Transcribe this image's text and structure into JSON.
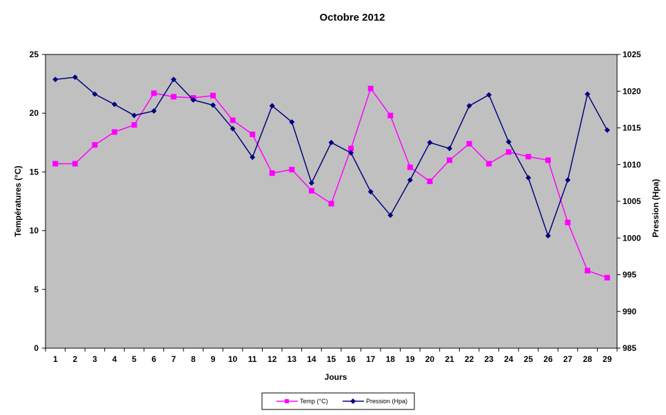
{
  "chart_data": {
    "type": "line",
    "title": "Octobre 2012",
    "xlabel": "Jours",
    "ylabel_left": "Températures (°C)",
    "ylabel_right": "Pression (Hpa)",
    "categories": [
      "1",
      "2",
      "3",
      "4",
      "5",
      "6",
      "7",
      "8",
      "9",
      "10",
      "11",
      "12",
      "13",
      "14",
      "15",
      "16",
      "17",
      "18",
      "19",
      "20",
      "21",
      "22",
      "23",
      "24",
      "25",
      "26",
      "27",
      "28",
      "29"
    ],
    "y_left_ticks": [
      "0",
      "5",
      "10",
      "15",
      "20",
      "25"
    ],
    "y_right_ticks": [
      "985",
      "990",
      "995",
      "1000",
      "1005",
      "1010",
      "1015",
      "1020",
      "1025"
    ],
    "ylim_left": [
      0,
      25
    ],
    "ylim_right": [
      985,
      1025
    ],
    "plot_background": "#C0C0C0",
    "grid": false,
    "legend_position": "bottom",
    "series": [
      {
        "name": "Temp (°C)",
        "axis": "left",
        "color": "#FF00FF",
        "marker": "square",
        "values": [
          15.7,
          15.7,
          17.3,
          18.4,
          19.0,
          21.7,
          21.4,
          21.3,
          21.5,
          19.4,
          18.2,
          14.9,
          15.2,
          13.4,
          12.3,
          17.0,
          22.1,
          19.8,
          15.4,
          14.2,
          16.0,
          17.4,
          15.7,
          16.7,
          16.3,
          16.0,
          10.7,
          6.6,
          6.0
        ]
      },
      {
        "name": "Pression (Hpa)",
        "axis": "right",
        "color": "#000080",
        "marker": "diamond",
        "values": [
          1021.6,
          1021.9,
          1019.6,
          1018.2,
          1016.7,
          1017.3,
          1021.6,
          1018.8,
          1018.1,
          1014.9,
          1011.0,
          1018.0,
          1015.8,
          1007.5,
          1013.0,
          1011.6,
          1006.3,
          1003.1,
          1007.9,
          1013.0,
          1012.2,
          1018.0,
          1019.5,
          1013.1,
          1008.2,
          1000.3,
          1007.9,
          1019.6,
          1014.7
        ]
      }
    ]
  }
}
